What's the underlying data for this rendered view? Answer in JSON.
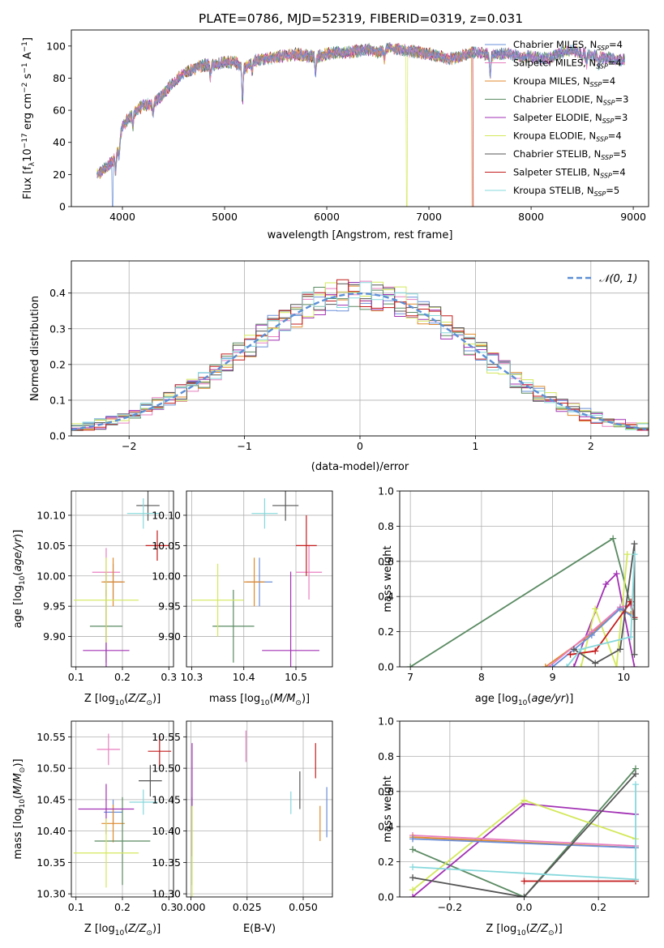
{
  "figure": {
    "title": "PLATE=0786, MJD=52319, FIBERID=0319, z=0.031"
  },
  "models": [
    {
      "label": "Chabrier MILES, N",
      "nssp": "4",
      "color": "#6a8fd8"
    },
    {
      "label": "Salpeter MILES, N",
      "nssp": "4",
      "color": "#e87fc0"
    },
    {
      "label": "Kroupa MILES, N",
      "nssp": "4",
      "color": "#e08a2c"
    },
    {
      "label": "Chabrier ELODIE, N",
      "nssp": "3",
      "color": "#5a8a62"
    },
    {
      "label": "Salpeter ELODIE, N",
      "nssp": "3",
      "color": "#a231b4"
    },
    {
      "label": "Kroupa ELODIE, N",
      "nssp": "4",
      "color": "#d4e85a"
    },
    {
      "label": "Chabrier STELIB, N",
      "nssp": "5",
      "color": "#555555"
    },
    {
      "label": "Salpeter STELIB, N",
      "nssp": "4",
      "color": "#c41c1c"
    },
    {
      "label": "Kroupa STELIB, N",
      "nssp": "5",
      "color": "#86d8dc"
    }
  ],
  "chart_data": [
    {
      "id": "spectrum",
      "type": "line",
      "xlabel": "wavelength [Angstrom, rest frame]",
      "ylabel_main": "Flux [f",
      "ylabel_lambda": "λ",
      "ylabel_mid": "10",
      "ylabel_exp": "−17",
      "ylabel_units": " erg cm",
      "ylabel_exp2": "−2",
      "ylabel_units2": " s",
      "ylabel_exp3": "−1",
      "ylabel_end": " A",
      "ylabel_exp4": "−1",
      "ylabel_close": "]",
      "xlim": [
        3500,
        9150
      ],
      "ylim": [
        0,
        110
      ],
      "xticks": [
        4000,
        5000,
        6000,
        7000,
        8000,
        9000
      ],
      "yticks": [
        0,
        20,
        40,
        60,
        80,
        100
      ],
      "continuum": [
        [
          3750,
          20
        ],
        [
          3800,
          22
        ],
        [
          3900,
          28
        ],
        [
          3950,
          34
        ],
        [
          4000,
          50
        ],
        [
          4100,
          58
        ],
        [
          4200,
          63
        ],
        [
          4300,
          64
        ],
        [
          4400,
          70
        ],
        [
          4500,
          78
        ],
        [
          4600,
          83
        ],
        [
          4700,
          86
        ],
        [
          4800,
          88
        ],
        [
          4900,
          88
        ],
        [
          5000,
          90
        ],
        [
          5100,
          90
        ],
        [
          5200,
          86
        ],
        [
          5300,
          91
        ],
        [
          5400,
          92
        ],
        [
          5500,
          93
        ],
        [
          5600,
          94
        ],
        [
          5700,
          95
        ],
        [
          5800,
          94
        ],
        [
          5900,
          93
        ],
        [
          6000,
          95
        ],
        [
          6100,
          96
        ],
        [
          6200,
          96
        ],
        [
          6300,
          97
        ],
        [
          6400,
          98
        ],
        [
          6500,
          96
        ],
        [
          6600,
          99
        ],
        [
          6700,
          98
        ],
        [
          6800,
          97
        ],
        [
          6900,
          96
        ],
        [
          7000,
          95
        ],
        [
          7100,
          94
        ],
        [
          7200,
          92
        ],
        [
          7300,
          93
        ],
        [
          7400,
          96
        ],
        [
          7500,
          96
        ],
        [
          7600,
          94
        ],
        [
          7700,
          95
        ],
        [
          7800,
          95
        ],
        [
          7900,
          93
        ],
        [
          8000,
          94
        ],
        [
          8100,
          92
        ],
        [
          8200,
          93
        ],
        [
          8300,
          96
        ],
        [
          8400,
          97
        ],
        [
          8500,
          96
        ],
        [
          8600,
          94
        ],
        [
          8700,
          93
        ],
        [
          8800,
          92
        ],
        [
          8900,
          91
        ]
      ],
      "dips": [
        [
          3933,
          -10
        ],
        [
          3968,
          -8
        ],
        [
          4102,
          -8
        ],
        [
          4300,
          -6
        ],
        [
          4861,
          -8
        ],
        [
          5175,
          -22
        ],
        [
          5270,
          -6
        ],
        [
          5890,
          -10
        ],
        [
          6563,
          -6
        ],
        [
          7600,
          -14
        ],
        [
          8500,
          -6
        ],
        [
          8542,
          -8
        ],
        [
          8662,
          -6
        ]
      ],
      "drops": [
        {
          "model": 0,
          "x": 3900
        },
        {
          "model": 5,
          "x": 6780
        },
        {
          "model": 2,
          "x": 7420
        },
        {
          "model": 7,
          "x": 7430
        }
      ],
      "spectrum_end": {
        "drop_index": 7,
        "x": 8920
      }
    },
    {
      "id": "residuals",
      "type": "histogram",
      "xlabel": "(data-model)/error",
      "ylabel": "Normed distribution",
      "xlim": [
        -2.5,
        2.5
      ],
      "ylim": [
        0,
        0.49
      ],
      "xticks": [
        -2,
        -1,
        0,
        1,
        2
      ],
      "yticks": [
        0.0,
        0.1,
        0.2,
        0.3,
        0.4
      ],
      "bin_width": 0.1,
      "legend_label": "𝒩(0, 1)",
      "legend_color": "#5b8fd6",
      "gaussian": {
        "mu": 0,
        "sigma": 1,
        "peak": 0.3989
      }
    },
    {
      "id": "age_vs_Z",
      "type": "errorbar",
      "xlabel": "Z [log",
      "xlabel_sub": "10",
      "xlabel_end": "(Z/Z",
      "xlabel_sun": "⊙",
      "xlabel_close": ")]",
      "ylabel": "age  [log",
      "ylabel_sub": "10",
      "ylabel_end": "(age/yr)]",
      "xlim": [
        0.09,
        0.31
      ],
      "ylim": [
        9.85,
        10.14
      ],
      "xticks": [
        0.1,
        0.2,
        0.3
      ],
      "yticks": [
        9.9,
        9.95,
        10.0,
        10.05,
        10.1
      ],
      "points": [
        {
          "m": 0,
          "x": 0.18,
          "xe": 0.02,
          "y": 9.99,
          "ye": 0.03
        },
        {
          "m": 1,
          "x": 0.165,
          "xe": 0.03,
          "y": 10.006,
          "ye": 0.04
        },
        {
          "m": 2,
          "x": 0.18,
          "xe": 0.025,
          "y": 9.99,
          "ye": 0.04
        },
        {
          "m": 3,
          "x": 0.165,
          "xe": 0.035,
          "y": 9.917,
          "ye": 0.06
        },
        {
          "m": 4,
          "x": 0.165,
          "xe": 0.05,
          "y": 9.877,
          "ye": 0.13
        },
        {
          "m": 5,
          "x": 0.165,
          "xe": 0.07,
          "y": 9.96,
          "ye": 0.07
        },
        {
          "m": 6,
          "x": 0.255,
          "xe": 0.025,
          "y": 10.116,
          "ye": 0.025
        },
        {
          "m": 7,
          "x": 0.275,
          "xe": 0.025,
          "y": 10.05,
          "ye": 0.025
        },
        {
          "m": 8,
          "x": 0.245,
          "xe": 0.035,
          "y": 10.103,
          "ye": 0.025
        }
      ]
    },
    {
      "id": "age_vs_mass",
      "type": "errorbar",
      "xlabel": "mass [log",
      "xlabel_sub": "10",
      "xlabel_end": "(M/M",
      "xlabel_sun": "⊙",
      "xlabel_close": ")]",
      "xlim": [
        10.29,
        10.57
      ],
      "ylim": [
        9.85,
        10.14
      ],
      "xticks": [
        10.3,
        10.4,
        10.5
      ],
      "yticks": [
        9.9,
        9.95,
        10.0,
        10.05,
        10.1
      ],
      "points": [
        {
          "m": 0,
          "x": 10.43,
          "xe": 0.025,
          "y": 9.99,
          "ye": 0.04
        },
        {
          "m": 1,
          "x": 10.525,
          "xe": 0.025,
          "y": 10.006,
          "ye": 0.045
        },
        {
          "m": 2,
          "x": 10.42,
          "xe": 0.02,
          "y": 9.99,
          "ye": 0.04
        },
        {
          "m": 3,
          "x": 10.38,
          "xe": 0.04,
          "y": 9.917,
          "ye": 0.06
        },
        {
          "m": 4,
          "x": 10.49,
          "xe": 0.055,
          "y": 9.877,
          "ye": 0.13
        },
        {
          "m": 5,
          "x": 10.35,
          "xe": 0.05,
          "y": 9.96,
          "ye": 0.06
        },
        {
          "m": 6,
          "x": 10.48,
          "xe": 0.025,
          "y": 10.116,
          "ye": 0.025
        },
        {
          "m": 7,
          "x": 10.52,
          "xe": 0.02,
          "y": 10.05,
          "ye": 0.05
        },
        {
          "m": 8,
          "x": 10.44,
          "xe": 0.025,
          "y": 10.103,
          "ye": 0.025
        }
      ]
    },
    {
      "id": "mass_weight_vs_age",
      "type": "line",
      "xlabel": "age  [log",
      "xlabel_sub": "10",
      "xlabel_end": "(age/yr)]",
      "ylabel": "mass weight",
      "xlim": [
        6.85,
        10.35
      ],
      "ylim": [
        0,
        1
      ],
      "xticks": [
        7,
        8,
        9,
        10
      ],
      "yticks": [
        0.0,
        0.2,
        0.4,
        0.6,
        0.8,
        1.0
      ],
      "lines": [
        {
          "m": 3,
          "pts": [
            [
              7.0,
              0.0
            ],
            [
              9.85,
              0.73
            ],
            [
              10.15,
              0.27
            ]
          ]
        },
        {
          "m": 4,
          "pts": [
            [
              9.3,
              0.0
            ],
            [
              9.75,
              0.47
            ],
            [
              9.9,
              0.53
            ],
            [
              10.15,
              0.0
            ]
          ]
        },
        {
          "m": 5,
          "pts": [
            [
              9.4,
              0.0
            ],
            [
              9.6,
              0.33
            ],
            [
              9.9,
              0.0
            ],
            [
              10.05,
              0.64
            ]
          ]
        },
        {
          "m": 2,
          "pts": [
            [
              8.9,
              0.0
            ],
            [
              9.55,
              0.19
            ],
            [
              9.95,
              0.33
            ],
            [
              10.1,
              0.3
            ]
          ]
        },
        {
          "m": 1,
          "pts": [
            [
              8.95,
              0.0
            ],
            [
              9.55,
              0.2
            ],
            [
              9.95,
              0.34
            ],
            [
              10.1,
              0.35
            ]
          ]
        },
        {
          "m": 0,
          "pts": [
            [
              9.0,
              0.0
            ],
            [
              9.55,
              0.18
            ],
            [
              9.95,
              0.33
            ],
            [
              10.15,
              0.28
            ]
          ]
        },
        {
          "m": 7,
          "pts": [
            [
              9.25,
              0.07
            ],
            [
              9.6,
              0.09
            ],
            [
              10.1,
              0.37
            ],
            [
              10.15,
              0.28
            ]
          ]
        },
        {
          "m": 6,
          "pts": [
            [
              9.3,
              0.1
            ],
            [
              9.6,
              0.02
            ],
            [
              9.95,
              0.1
            ],
            [
              10.15,
              0.7
            ],
            [
              10.15,
              0.07
            ]
          ]
        },
        {
          "m": 8,
          "pts": [
            [
              9.2,
              0.0
            ],
            [
              9.4,
              0.1
            ],
            [
              10.1,
              0.17
            ],
            [
              10.15,
              0.64
            ]
          ]
        }
      ]
    },
    {
      "id": "mass_vs_Z",
      "type": "errorbar",
      "xlabel": "Z [log",
      "xlabel_sub": "10",
      "xlabel_end": "(Z/Z",
      "xlabel_sun": "⊙",
      "xlabel_close": ")]",
      "ylabel": "mass [log",
      "ylabel_sub": "10",
      "ylabel_end": "(M/M",
      "ylabel_sun": "⊙",
      "ylabel_close": ")]",
      "xlim": [
        0.09,
        0.31
      ],
      "ylim": [
        10.295,
        10.575
      ],
      "xticks": [
        0.1,
        0.2,
        0.3
      ],
      "yticks": [
        10.3,
        10.35,
        10.4,
        10.45,
        10.5,
        10.55
      ],
      "points": [
        {
          "m": 0,
          "x": 0.18,
          "xe": 0.02,
          "y": 10.43,
          "ye": 0.02
        },
        {
          "m": 1,
          "x": 0.17,
          "xe": 0.025,
          "y": 10.53,
          "ye": 0.025
        },
        {
          "m": 2,
          "x": 0.18,
          "xe": 0.025,
          "y": 10.412,
          "ye": 0.03
        },
        {
          "m": 3,
          "x": 0.2,
          "xe": 0.06,
          "y": 10.384,
          "ye": 0.07
        },
        {
          "m": 4,
          "x": 0.165,
          "xe": 0.06,
          "y": 10.435,
          "ye": 0.04
        },
        {
          "m": 5,
          "x": 0.165,
          "xe": 0.07,
          "y": 10.365,
          "ye": 0.055
        },
        {
          "m": 6,
          "x": 0.26,
          "xe": 0.025,
          "y": 10.48,
          "ye": 0.025
        },
        {
          "m": 7,
          "x": 0.28,
          "xe": 0.025,
          "y": 10.527,
          "ye": 0.025
        },
        {
          "m": 8,
          "x": 0.245,
          "xe": 0.03,
          "y": 10.446,
          "ye": 0.02
        }
      ]
    },
    {
      "id": "mass_vs_ebv",
      "type": "errorbar",
      "xlabel": "E(B-V)",
      "xlim": [
        -0.002,
        0.063
      ],
      "ylim": [
        10.295,
        10.575
      ],
      "xticks": [
        0.0,
        0.025,
        0.05
      ],
      "yticks": [
        10.3,
        10.35,
        10.4,
        10.45,
        10.5,
        10.55
      ],
      "points": [
        {
          "m": 0,
          "x": 0.0605,
          "xe": 0,
          "y": 10.43,
          "ye": 0.04
        },
        {
          "m": 1,
          "x": 0.0245,
          "xe": 0,
          "y": 10.535,
          "ye": 0.025
        },
        {
          "m": 2,
          "x": 0.0575,
          "xe": 0,
          "y": 10.412,
          "ye": 0.028
        },
        {
          "m": 3,
          "x": 0.0005,
          "xe": 0,
          "y": 10.384,
          "ye": 0.07
        },
        {
          "m": 4,
          "x": 0.0005,
          "xe": 0,
          "y": 10.45,
          "ye": 0.09
        },
        {
          "m": 5,
          "x": 0.0005,
          "xe": 0,
          "y": 10.365,
          "ye": 0.075
        },
        {
          "m": 6,
          "x": 0.0485,
          "xe": 0,
          "y": 10.465,
          "ye": 0.03
        },
        {
          "m": 7,
          "x": 0.0555,
          "xe": 0,
          "y": 10.512,
          "ye": 0.028
        },
        {
          "m": 8,
          "x": 0.0445,
          "xe": 0,
          "y": 10.445,
          "ye": 0.018
        }
      ]
    },
    {
      "id": "mass_weight_vs_Z",
      "type": "line",
      "xlabel": "Z [log",
      "xlabel_sub": "10",
      "xlabel_end": "(Z/Z",
      "xlabel_sun": "⊙",
      "xlabel_close": ")]",
      "ylabel": "mass weight",
      "xlim": [
        -0.335,
        0.335
      ],
      "ylim": [
        0,
        1
      ],
      "xticks": [
        -0.2,
        0.0,
        0.2
      ],
      "yticks": [
        0.0,
        0.2,
        0.4,
        0.6,
        0.8,
        1.0
      ],
      "lines": [
        {
          "m": 3,
          "pts": [
            [
              -0.3,
              0.27
            ],
            [
              0.0,
              0.0
            ],
            [
              0.3,
              0.73
            ]
          ]
        },
        {
          "m": 4,
          "pts": [
            [
              -0.3,
              0.0
            ],
            [
              0.0,
              0.53
            ],
            [
              0.3,
              0.47
            ]
          ]
        },
        {
          "m": 5,
          "pts": [
            [
              -0.3,
              0.04
            ],
            [
              0.0,
              0.55
            ],
            [
              0.3,
              0.33
            ]
          ]
        },
        {
          "m": 1,
          "pts": [
            [
              -0.3,
              0.35
            ],
            [
              0.3,
              0.29
            ]
          ]
        },
        {
          "m": 2,
          "pts": [
            [
              -0.3,
              0.34
            ],
            [
              0.3,
              0.28
            ]
          ]
        },
        {
          "m": 0,
          "pts": [
            [
              -0.3,
              0.33
            ],
            [
              0.3,
              0.28
            ]
          ]
        },
        {
          "m": 7,
          "pts": [
            [
              0.0,
              0.09
            ],
            [
              0.3,
              0.09
            ]
          ]
        },
        {
          "m": 6,
          "pts": [
            [
              -0.3,
              0.11
            ],
            [
              0.0,
              0.0
            ],
            [
              0.3,
              0.7
            ]
          ]
        },
        {
          "m": 8,
          "pts": [
            [
              -0.3,
              0.17
            ],
            [
              0.3,
              0.1
            ],
            [
              0.3,
              0.64
            ]
          ]
        }
      ]
    }
  ]
}
